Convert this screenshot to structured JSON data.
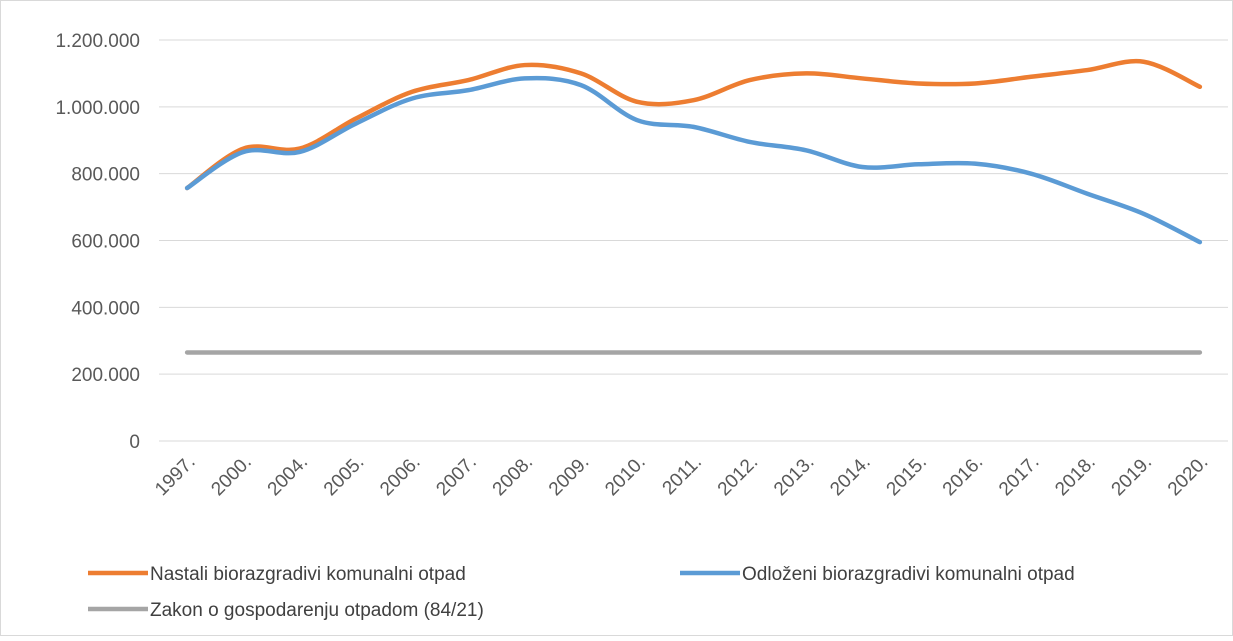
{
  "chart_data": {
    "type": "line",
    "categories": [
      "1997.",
      "2000.",
      "2004.",
      "2005.",
      "2006.",
      "2007.",
      "2008.",
      "2009.",
      "2010.",
      "2011.",
      "2012.",
      "2013.",
      "2014.",
      "2015.",
      "2016.",
      "2017.",
      "2018.",
      "2019.",
      "2020."
    ],
    "series": [
      {
        "name": "Nastali biorazgradivi komunalni otpad",
        "color": "#ed7d31",
        "values": [
          757000,
          875000,
          875000,
          965000,
          1045000,
          1080000,
          1125000,
          1100000,
          1015000,
          1020000,
          1080000,
          1100000,
          1085000,
          1070000,
          1070000,
          1090000,
          1110000,
          1135000,
          1060000
        ]
      },
      {
        "name": "Odloženi biorazgradivi komunalni otpad",
        "color": "#5b9bd5",
        "values": [
          757000,
          865000,
          865000,
          950000,
          1025000,
          1050000,
          1085000,
          1065000,
          960000,
          940000,
          895000,
          870000,
          820000,
          828000,
          830000,
          800000,
          740000,
          680000,
          595000
        ]
      },
      {
        "name": "Zakon o gospodarenju otpadom (84/21)",
        "color": "#a5a5a5",
        "values": [
          265000,
          265000,
          265000,
          265000,
          265000,
          265000,
          265000,
          265000,
          265000,
          265000,
          265000,
          265000,
          265000,
          265000,
          265000,
          265000,
          265000,
          265000,
          265000
        ]
      }
    ],
    "ylim": [
      0,
      1200000
    ],
    "yticks": [
      0,
      {
        "value": 200000,
        "label": "200.000"
      },
      {
        "value": 400000,
        "label": "400.000"
      },
      {
        "value": 600000,
        "label": "600.000"
      },
      {
        "value": 800000,
        "label": "800.000"
      },
      {
        "value": 1000000,
        "label": "1.000.000"
      },
      {
        "value": 1200000,
        "label": "1.200.000"
      }
    ],
    "grid": true,
    "legend": "bottom",
    "smooth": true
  }
}
